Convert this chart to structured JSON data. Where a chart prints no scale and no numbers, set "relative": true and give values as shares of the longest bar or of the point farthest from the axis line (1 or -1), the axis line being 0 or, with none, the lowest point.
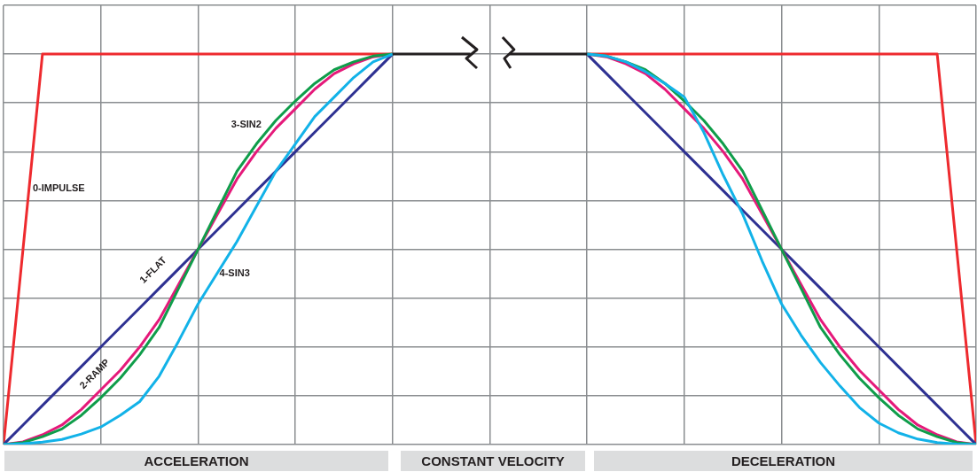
{
  "chart_data": {
    "type": "line",
    "relative": true,
    "grid": true,
    "legend": false,
    "marker": "none",
    "line_style": "solid",
    "categories": [
      null,
      null,
      null,
      null,
      null,
      null,
      null,
      null,
      null,
      null,
      null,
      null,
      null,
      null,
      null,
      null,
      null,
      null,
      null,
      null,
      null,
      null,
      null,
      null,
      null,
      null,
      null,
      null,
      null,
      null,
      null,
      null,
      null,
      null,
      null,
      null,
      null,
      null,
      null,
      null,
      null,
      null,
      null,
      null,
      null,
      null,
      null,
      null,
      null,
      null,
      null
    ],
    "series": [
      {
        "name": "0-IMPULSE",
        "color": "#ee2a2e",
        "values": [
          0,
          0.5,
          1,
          1,
          1,
          1,
          1,
          1,
          1,
          1,
          1,
          1,
          1,
          1,
          1,
          1,
          1,
          1,
          1,
          1,
          1,
          null,
          null,
          null,
          null,
          null,
          null,
          null,
          null,
          null,
          null,
          null,
          null,
          null,
          null,
          null,
          null,
          null,
          null,
          null,
          null,
          null,
          null,
          null,
          null,
          null,
          null,
          null,
          null,
          null,
          null
        ]
      },
      {
        "name": "1-FLAT",
        "color": "#2e3192",
        "values": [
          0,
          0.05,
          0.1,
          0.15,
          0.2,
          0.25,
          0.3,
          0.35,
          0.4,
          0.45,
          0.5,
          0.55,
          0.6,
          0.65,
          0.7,
          0.75,
          0.8,
          0.85,
          0.9,
          0.95,
          1,
          null,
          null,
          null,
          null,
          null,
          null,
          null,
          null,
          null,
          null,
          null,
          null,
          null,
          null,
          null,
          null,
          null,
          null,
          null,
          null,
          null,
          null,
          null,
          null,
          null,
          null,
          null,
          null,
          null,
          null
        ]
      },
      {
        "name": "2-RAMP",
        "color": "#e5197a",
        "values": [
          0,
          0.007,
          0.025,
          0.05,
          0.09,
          0.14,
          0.19,
          0.25,
          0.32,
          0.41,
          0.5,
          0.59,
          0.68,
          0.75,
          0.81,
          0.86,
          0.91,
          0.95,
          0.975,
          0.993,
          1,
          null,
          null,
          null,
          null,
          null,
          null,
          null,
          null,
          null,
          null,
          null,
          null,
          null,
          null,
          null,
          null,
          null,
          null,
          null,
          null,
          null,
          null,
          null,
          null,
          null,
          null,
          null,
          null,
          null,
          null
        ]
      },
      {
        "name": "3-SIN2",
        "color": "#0f9d4a",
        "values": [
          0,
          0.005,
          0.02,
          0.04,
          0.075,
          0.12,
          0.17,
          0.23,
          0.3,
          0.4,
          0.5,
          0.6,
          0.7,
          0.77,
          0.83,
          0.88,
          0.925,
          0.96,
          0.98,
          0.995,
          1,
          null,
          null,
          null,
          null,
          null,
          null,
          null,
          null,
          null,
          null,
          null,
          null,
          null,
          null,
          null,
          null,
          null,
          null,
          null,
          null,
          null,
          null,
          null,
          null,
          null,
          null,
          null,
          null,
          null,
          null
        ]
      },
      {
        "name": "4-SIN3",
        "color": "#12b2e8",
        "values": [
          0,
          0.002,
          0.006,
          0.013,
          0.027,
          0.045,
          0.075,
          0.11,
          0.175,
          0.265,
          0.36,
          0.44,
          0.52,
          0.61,
          0.7,
          0.77,
          0.84,
          0.89,
          0.94,
          0.98,
          1,
          null,
          null,
          null,
          null,
          null,
          null,
          null,
          null,
          null,
          null,
          null,
          null,
          null,
          null,
          null,
          null,
          null,
          null,
          null,
          null,
          null,
          null,
          null,
          null,
          null,
          null,
          null,
          null,
          null,
          null
        ]
      },
      {
        "color": "#ee2a2e",
        "values": [
          null,
          null,
          null,
          null,
          null,
          null,
          null,
          null,
          null,
          null,
          null,
          null,
          null,
          null,
          null,
          null,
          null,
          null,
          null,
          null,
          null,
          null,
          null,
          null,
          null,
          null,
          null,
          null,
          null,
          null,
          1,
          1,
          1,
          1,
          1,
          1,
          1,
          1,
          1,
          1,
          1,
          1,
          1,
          1,
          1,
          1,
          1,
          1,
          1,
          0.5,
          0
        ]
      },
      {
        "color": "#2e3192",
        "values": [
          null,
          null,
          null,
          null,
          null,
          null,
          null,
          null,
          null,
          null,
          null,
          null,
          null,
          null,
          null,
          null,
          null,
          null,
          null,
          null,
          null,
          null,
          null,
          null,
          null,
          null,
          null,
          null,
          null,
          null,
          1,
          0.95,
          0.9,
          0.85,
          0.8,
          0.75,
          0.7,
          0.65,
          0.6,
          0.55,
          0.5,
          0.45,
          0.4,
          0.35,
          0.3,
          0.25,
          0.2,
          0.15,
          0.1,
          0.05,
          0
        ]
      },
      {
        "color": "#e5197a",
        "values": [
          null,
          null,
          null,
          null,
          null,
          null,
          null,
          null,
          null,
          null,
          null,
          null,
          null,
          null,
          null,
          null,
          null,
          null,
          null,
          null,
          null,
          null,
          null,
          null,
          null,
          null,
          null,
          null,
          null,
          null,
          1,
          0.993,
          0.975,
          0.95,
          0.91,
          0.86,
          0.81,
          0.75,
          0.68,
          0.59,
          0.5,
          0.41,
          0.32,
          0.25,
          0.19,
          0.14,
          0.09,
          0.05,
          0.025,
          0.007,
          0
        ]
      },
      {
        "color": "#0f9d4a",
        "values": [
          null,
          null,
          null,
          null,
          null,
          null,
          null,
          null,
          null,
          null,
          null,
          null,
          null,
          null,
          null,
          null,
          null,
          null,
          null,
          null,
          null,
          null,
          null,
          null,
          null,
          null,
          null,
          null,
          null,
          null,
          1,
          0.995,
          0.98,
          0.96,
          0.925,
          0.88,
          0.83,
          0.77,
          0.7,
          0.6,
          0.5,
          0.4,
          0.3,
          0.23,
          0.17,
          0.12,
          0.075,
          0.04,
          0.02,
          0.005,
          0
        ]
      },
      {
        "color": "#12b2e8",
        "values": [
          null,
          null,
          null,
          null,
          null,
          null,
          null,
          null,
          null,
          null,
          null,
          null,
          null,
          null,
          null,
          null,
          null,
          null,
          null,
          null,
          null,
          null,
          null,
          null,
          null,
          null,
          null,
          null,
          null,
          null,
          1,
          0.995,
          0.98,
          0.955,
          0.925,
          0.89,
          0.8,
          0.69,
          0.59,
          0.47,
          0.36,
          0.28,
          0.21,
          0.15,
          0.095,
          0.055,
          0.03,
          0.014,
          0.005,
          0.001,
          0
        ]
      },
      {
        "color": "#231f20",
        "values": [
          null,
          null,
          null,
          null,
          null,
          null,
          null,
          null,
          null,
          null,
          null,
          null,
          null,
          null,
          null,
          null,
          null,
          null,
          null,
          null,
          1,
          1,
          1,
          1,
          1,
          null,
          null,
          null,
          null,
          null,
          null,
          null,
          null,
          null,
          null,
          null,
          null,
          null,
          null,
          null,
          null,
          null,
          null,
          null,
          null,
          null,
          null,
          null,
          null,
          null,
          null
        ]
      },
      {
        "color": "#231f20",
        "values": [
          null,
          null,
          null,
          null,
          null,
          null,
          null,
          null,
          null,
          null,
          null,
          null,
          null,
          null,
          null,
          null,
          null,
          null,
          null,
          null,
          null,
          null,
          null,
          null,
          null,
          null,
          1,
          1,
          1,
          1,
          1,
          null,
          null,
          null,
          null,
          null,
          null,
          null,
          null,
          null,
          null,
          null,
          null,
          null,
          null,
          null,
          null,
          null,
          null,
          null,
          null
        ]
      }
    ],
    "annotations": [
      "ACCELERATION",
      "CONSTANT VELOCITY",
      "DECELERATION"
    ]
  }
}
